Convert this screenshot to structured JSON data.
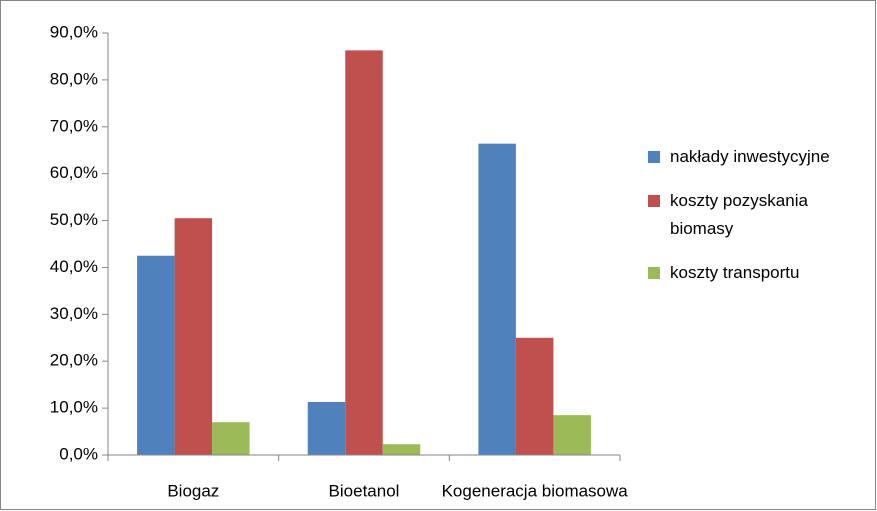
{
  "chart_data": {
    "type": "bar",
    "categories": [
      "Biogaz",
      "Bioetanol",
      "Kogeneracja biomasowa"
    ],
    "series": [
      {
        "name": "nakłady inwestycyjne",
        "color": "#4f81bd",
        "values": [
          42.5,
          11.3,
          66.4
        ]
      },
      {
        "name": "koszty pozyskania biomasy",
        "color": "#c0504d",
        "values": [
          50.5,
          86.3,
          25.0
        ]
      },
      {
        "name": "koszty transportu",
        "color": "#9bbb59",
        "values": [
          7.0,
          2.3,
          8.5
        ]
      }
    ],
    "ylim": [
      0,
      90
    ],
    "yticks": [
      {
        "value": 0,
        "label": "0,0%"
      },
      {
        "value": 10,
        "label": "10,0%"
      },
      {
        "value": 20,
        "label": "20,0%"
      },
      {
        "value": 30,
        "label": "30,0%"
      },
      {
        "value": 40,
        "label": "40,0%"
      },
      {
        "value": 50,
        "label": "50,0%"
      },
      {
        "value": 60,
        "label": "60,0%"
      },
      {
        "value": 70,
        "label": "70,0%"
      },
      {
        "value": 80,
        "label": "80,0%"
      },
      {
        "value": 90,
        "label": "90,0%"
      }
    ],
    "grid": false,
    "legend": "right"
  }
}
